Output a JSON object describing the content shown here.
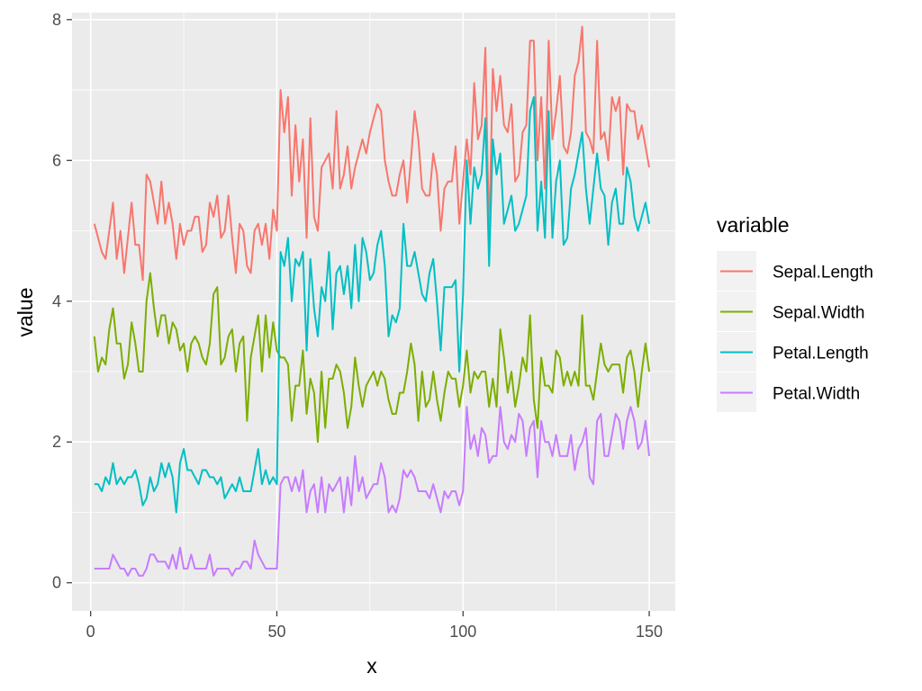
{
  "chart_data": {
    "type": "line",
    "xlabel": "x",
    "ylabel": "value",
    "xlim": [
      -5,
      157
    ],
    "ylim": [
      -0.4,
      8.1
    ],
    "x_ticks": [
      0,
      50,
      100,
      150
    ],
    "y_ticks": [
      0,
      2,
      4,
      6,
      8
    ],
    "grid": true,
    "legend": {
      "title": "variable",
      "placement": "right"
    },
    "x": [
      1,
      2,
      3,
      4,
      5,
      6,
      7,
      8,
      9,
      10,
      11,
      12,
      13,
      14,
      15,
      16,
      17,
      18,
      19,
      20,
      21,
      22,
      23,
      24,
      25,
      26,
      27,
      28,
      29,
      30,
      31,
      32,
      33,
      34,
      35,
      36,
      37,
      38,
      39,
      40,
      41,
      42,
      43,
      44,
      45,
      46,
      47,
      48,
      49,
      50,
      51,
      52,
      53,
      54,
      55,
      56,
      57,
      58,
      59,
      60,
      61,
      62,
      63,
      64,
      65,
      66,
      67,
      68,
      69,
      70,
      71,
      72,
      73,
      74,
      75,
      76,
      77,
      78,
      79,
      80,
      81,
      82,
      83,
      84,
      85,
      86,
      87,
      88,
      89,
      90,
      91,
      92,
      93,
      94,
      95,
      96,
      97,
      98,
      99,
      100,
      101,
      102,
      103,
      104,
      105,
      106,
      107,
      108,
      109,
      110,
      111,
      112,
      113,
      114,
      115,
      116,
      117,
      118,
      119,
      120,
      121,
      122,
      123,
      124,
      125,
      126,
      127,
      128,
      129,
      130,
      131,
      132,
      133,
      134,
      135,
      136,
      137,
      138,
      139,
      140,
      141,
      142,
      143,
      144,
      145,
      146,
      147,
      148,
      149,
      150
    ],
    "series": [
      {
        "name": "Sepal.Length",
        "color": "#F8766D",
        "values": [
          5.1,
          4.9,
          4.7,
          4.6,
          5.0,
          5.4,
          4.6,
          5.0,
          4.4,
          4.9,
          5.4,
          4.8,
          4.8,
          4.3,
          5.8,
          5.7,
          5.4,
          5.1,
          5.7,
          5.1,
          5.4,
          5.1,
          4.6,
          5.1,
          4.8,
          5.0,
          5.0,
          5.2,
          5.2,
          4.7,
          4.8,
          5.4,
          5.2,
          5.5,
          4.9,
          5.0,
          5.5,
          4.9,
          4.4,
          5.1,
          5.0,
          4.5,
          4.4,
          5.0,
          5.1,
          4.8,
          5.1,
          4.6,
          5.3,
          5.0,
          7.0,
          6.4,
          6.9,
          5.5,
          6.5,
          5.7,
          6.3,
          4.9,
          6.6,
          5.2,
          5.0,
          5.9,
          6.0,
          6.1,
          5.6,
          6.7,
          5.6,
          5.8,
          6.2,
          5.6,
          5.9,
          6.1,
          6.3,
          6.1,
          6.4,
          6.6,
          6.8,
          6.7,
          6.0,
          5.7,
          5.5,
          5.5,
          5.8,
          6.0,
          5.4,
          6.0,
          6.7,
          6.3,
          5.6,
          5.5,
          5.5,
          6.1,
          5.8,
          5.0,
          5.6,
          5.7,
          5.7,
          6.2,
          5.1,
          5.7,
          6.3,
          5.8,
          7.1,
          6.3,
          6.5,
          7.6,
          4.9,
          7.3,
          6.7,
          7.2,
          6.5,
          6.4,
          6.8,
          5.7,
          5.8,
          6.4,
          6.5,
          7.7,
          7.7,
          6.0,
          6.9,
          5.6,
          7.7,
          6.3,
          6.7,
          7.2,
          6.2,
          6.1,
          6.4,
          7.2,
          7.4,
          7.9,
          6.4,
          6.3,
          6.1,
          7.7,
          6.3,
          6.4,
          6.0,
          6.9,
          6.7,
          6.9,
          5.8,
          6.8,
          6.7,
          6.7,
          6.3,
          6.5,
          6.2,
          5.9
        ]
      },
      {
        "name": "Sepal.Width",
        "color": "#7CAE00",
        "values": [
          3.5,
          3.0,
          3.2,
          3.1,
          3.6,
          3.9,
          3.4,
          3.4,
          2.9,
          3.1,
          3.7,
          3.4,
          3.0,
          3.0,
          4.0,
          4.4,
          3.9,
          3.5,
          3.8,
          3.8,
          3.4,
          3.7,
          3.6,
          3.3,
          3.4,
          3.0,
          3.4,
          3.5,
          3.4,
          3.2,
          3.1,
          3.4,
          4.1,
          4.2,
          3.1,
          3.2,
          3.5,
          3.6,
          3.0,
          3.4,
          3.5,
          2.3,
          3.2,
          3.5,
          3.8,
          3.0,
          3.8,
          3.2,
          3.7,
          3.3,
          3.2,
          3.2,
          3.1,
          2.3,
          2.8,
          2.8,
          3.3,
          2.4,
          2.9,
          2.7,
          2.0,
          3.0,
          2.2,
          2.9,
          2.9,
          3.1,
          3.0,
          2.7,
          2.2,
          2.5,
          3.2,
          2.8,
          2.5,
          2.8,
          2.9,
          3.0,
          2.8,
          3.0,
          2.9,
          2.6,
          2.4,
          2.4,
          2.7,
          2.7,
          3.0,
          3.4,
          3.1,
          2.3,
          3.0,
          2.5,
          2.6,
          3.0,
          2.6,
          2.3,
          2.7,
          3.0,
          2.9,
          2.9,
          2.5,
          2.8,
          3.3,
          2.7,
          3.0,
          2.9,
          3.0,
          3.0,
          2.5,
          2.9,
          2.5,
          3.6,
          3.2,
          2.7,
          3.0,
          2.5,
          2.8,
          3.2,
          3.0,
          3.8,
          2.6,
          2.2,
          3.2,
          2.8,
          2.8,
          2.7,
          3.3,
          3.2,
          2.8,
          3.0,
          2.8,
          3.0,
          2.8,
          3.8,
          2.8,
          2.8,
          2.6,
          3.0,
          3.4,
          3.1,
          3.0,
          3.1,
          3.1,
          3.1,
          2.7,
          3.2,
          3.3,
          3.0,
          2.5,
          3.0,
          3.4,
          3.0
        ]
      },
      {
        "name": "Petal.Length",
        "color": "#00BFC4",
        "values": [
          1.4,
          1.4,
          1.3,
          1.5,
          1.4,
          1.7,
          1.4,
          1.5,
          1.4,
          1.5,
          1.5,
          1.6,
          1.4,
          1.1,
          1.2,
          1.5,
          1.3,
          1.4,
          1.7,
          1.5,
          1.7,
          1.5,
          1.0,
          1.7,
          1.9,
          1.6,
          1.6,
          1.5,
          1.4,
          1.6,
          1.6,
          1.5,
          1.5,
          1.4,
          1.5,
          1.2,
          1.3,
          1.4,
          1.3,
          1.5,
          1.3,
          1.3,
          1.3,
          1.6,
          1.9,
          1.4,
          1.6,
          1.4,
          1.5,
          1.4,
          4.7,
          4.5,
          4.9,
          4.0,
          4.6,
          4.5,
          4.7,
          3.3,
          4.6,
          3.9,
          3.5,
          4.2,
          4.0,
          4.7,
          3.6,
          4.4,
          4.5,
          4.1,
          4.5,
          3.9,
          4.8,
          4.0,
          4.9,
          4.7,
          4.3,
          4.4,
          4.8,
          5.0,
          4.5,
          3.5,
          3.8,
          3.7,
          3.9,
          5.1,
          4.5,
          4.5,
          4.7,
          4.4,
          4.1,
          4.0,
          4.4,
          4.6,
          4.0,
          3.3,
          4.2,
          4.2,
          4.2,
          4.3,
          3.0,
          4.1,
          6.0,
          5.1,
          5.9,
          5.6,
          5.8,
          6.6,
          4.5,
          6.3,
          5.8,
          6.1,
          5.1,
          5.3,
          5.5,
          5.0,
          5.1,
          5.3,
          5.5,
          6.7,
          6.9,
          5.0,
          5.7,
          4.9,
          6.7,
          4.9,
          5.7,
          6.0,
          4.8,
          4.9,
          5.6,
          5.8,
          6.1,
          6.4,
          5.6,
          5.1,
          5.6,
          6.1,
          5.6,
          5.5,
          4.8,
          5.4,
          5.6,
          5.1,
          5.1,
          5.9,
          5.7,
          5.2,
          5.0,
          5.2,
          5.4,
          5.1
        ]
      },
      {
        "name": "Petal.Width",
        "color": "#C77CFF",
        "values": [
          0.2,
          0.2,
          0.2,
          0.2,
          0.2,
          0.4,
          0.3,
          0.2,
          0.2,
          0.1,
          0.2,
          0.2,
          0.1,
          0.1,
          0.2,
          0.4,
          0.4,
          0.3,
          0.3,
          0.3,
          0.2,
          0.4,
          0.2,
          0.5,
          0.2,
          0.2,
          0.4,
          0.2,
          0.2,
          0.2,
          0.2,
          0.4,
          0.1,
          0.2,
          0.2,
          0.2,
          0.2,
          0.1,
          0.2,
          0.2,
          0.3,
          0.3,
          0.2,
          0.6,
          0.4,
          0.3,
          0.2,
          0.2,
          0.2,
          0.2,
          1.4,
          1.5,
          1.5,
          1.3,
          1.5,
          1.3,
          1.6,
          1.0,
          1.3,
          1.4,
          1.0,
          1.5,
          1.0,
          1.4,
          1.3,
          1.4,
          1.5,
          1.0,
          1.5,
          1.1,
          1.8,
          1.3,
          1.5,
          1.2,
          1.3,
          1.4,
          1.4,
          1.7,
          1.5,
          1.0,
          1.1,
          1.0,
          1.2,
          1.6,
          1.5,
          1.6,
          1.5,
          1.3,
          1.3,
          1.3,
          1.2,
          1.4,
          1.2,
          1.0,
          1.3,
          1.2,
          1.3,
          1.3,
          1.1,
          1.3,
          2.5,
          1.9,
          2.1,
          1.8,
          2.2,
          2.1,
          1.7,
          1.8,
          1.8,
          2.5,
          2.0,
          1.9,
          2.1,
          2.0,
          2.4,
          2.3,
          1.8,
          2.2,
          2.3,
          1.5,
          2.3,
          2.0,
          2.0,
          1.8,
          2.1,
          1.8,
          1.8,
          1.8,
          2.1,
          1.6,
          1.9,
          2.0,
          2.2,
          1.5,
          1.4,
          2.3,
          2.4,
          1.8,
          1.8,
          2.1,
          2.4,
          2.3,
          1.9,
          2.3,
          2.5,
          2.3,
          1.9,
          2.0,
          2.3,
          1.8
        ]
      }
    ]
  }
}
